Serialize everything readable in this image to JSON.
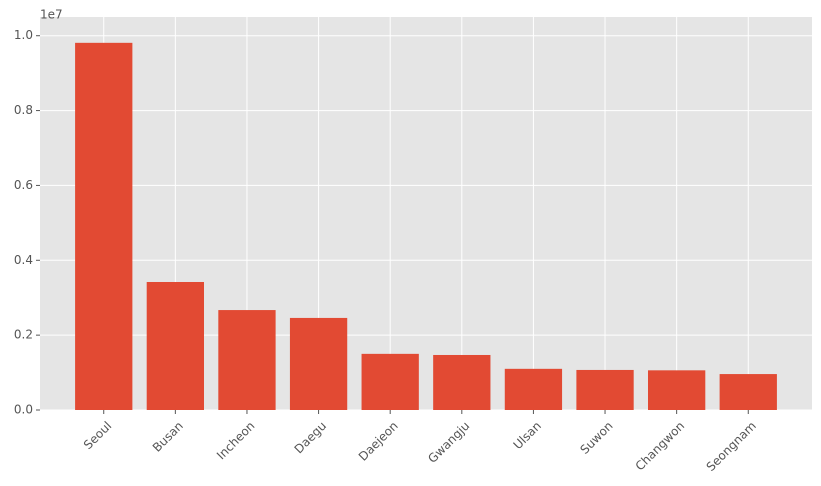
{
  "chart_data": {
    "type": "bar",
    "categories": [
      "Seoul",
      "Busan",
      "Incheon",
      "Daegu",
      "Daejeon",
      "Gwangju",
      "Ulsan",
      "Suwon",
      "Changwon",
      "Seongnam"
    ],
    "values": [
      9810000,
      3420000,
      2670000,
      2460000,
      1500000,
      1470000,
      1100000,
      1070000,
      1060000,
      960000
    ],
    "color": "#e24a33",
    "ylim": [
      0,
      10500000
    ],
    "yticks": [
      {
        "value": 0,
        "label": "0.0"
      },
      {
        "value": 2000000,
        "label": "0.2"
      },
      {
        "value": 4000000,
        "label": "0.4"
      },
      {
        "value": 6000000,
        "label": "0.6"
      },
      {
        "value": 8000000,
        "label": "0.8"
      },
      {
        "value": 10000000,
        "label": "1.0"
      }
    ],
    "offset_label": "1e7",
    "grid": true
  }
}
